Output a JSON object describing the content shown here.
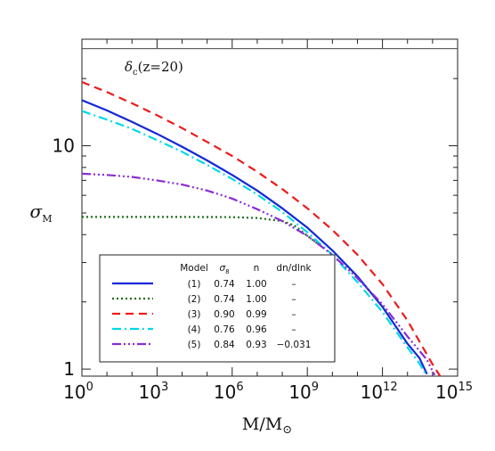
{
  "chart_data": {
    "type": "line",
    "title": "",
    "xlabel": "M/M⊙",
    "ylabel": "σM",
    "x_scale": "log",
    "y_scale": "log",
    "xlim": [
      1,
      1000000000000000.0
    ],
    "ylim": [
      0.93,
      30
    ],
    "x_ticks": [
      {
        "value": 1,
        "base": "10",
        "exp": "0"
      },
      {
        "value": 1000,
        "base": "10",
        "exp": "3"
      },
      {
        "value": 1000000,
        "base": "10",
        "exp": "6"
      },
      {
        "value": 1000000000,
        "base": "10",
        "exp": "9"
      },
      {
        "value": 1000000000000,
        "base": "10",
        "exp": "12"
      },
      {
        "value": 1000000000000000,
        "base": "10",
        "exp": "15"
      }
    ],
    "y_ticks": [
      {
        "value": 1,
        "label": "1"
      },
      {
        "value": 10,
        "label": "10"
      }
    ],
    "grid": false,
    "reference_line": {
      "y": 27.2,
      "label_main": "δ",
      "label_sub": "c",
      "label_rest": "(z=20)"
    },
    "legend": {
      "placement": "bottom-left",
      "headers": [
        "Model",
        "σ8",
        "n",
        "dn/dlnk"
      ],
      "rows": [
        {
          "model": "(1)",
          "sigma8": "0.74",
          "n": "1.00",
          "running": "–",
          "color": "#1428d8",
          "dash": "solid"
        },
        {
          "model": "(2)",
          "sigma8": "0.74",
          "n": "1.00",
          "running": "–",
          "color": "#1a6e1a",
          "dash": "dotted"
        },
        {
          "model": "(3)",
          "sigma8": "0.90",
          "n": "0.99",
          "running": "–",
          "color": "#ee1a1a",
          "dash": "dashed"
        },
        {
          "model": "(4)",
          "sigma8": "0.76",
          "n": "0.96",
          "running": "–",
          "color": "#00d8e6",
          "dash": "dashdot"
        },
        {
          "model": "(5)",
          "sigma8": "0.84",
          "n": "0.93",
          "running": "−0.031",
          "color": "#8a2bd4",
          "dash": "dashdotdotdot"
        }
      ]
    },
    "series": [
      {
        "color": "#1428d8",
        "dash": "solid",
        "x": [
          1,
          10,
          100,
          1000,
          10000,
          100000,
          1000000,
          10000000,
          100000000,
          1000000000,
          10000000000,
          100000000000,
          1000000000000,
          10000000000000,
          30000000000000,
          60000000000000
        ],
        "y": [
          16.0,
          14.4,
          12.8,
          11.3,
          9.9,
          8.6,
          7.4,
          6.3,
          5.25,
          4.3,
          3.4,
          2.6,
          1.9,
          1.3,
          1.12,
          0.95
        ]
      },
      {
        "color": "#1a6e1a",
        "dash": "dotted",
        "x": [
          1,
          10000,
          1000000,
          10000000,
          100000000,
          300000000,
          1000000000,
          3000000000
        ],
        "y": [
          4.8,
          4.8,
          4.79,
          4.75,
          4.6,
          4.4,
          3.95,
          3.6
        ]
      },
      {
        "color": "#ee1a1a",
        "dash": "dashed",
        "x": [
          1,
          10,
          100,
          1000,
          10000,
          100000,
          1000000,
          10000000,
          100000000,
          1000000000,
          10000000000,
          100000000000,
          1000000000000,
          10000000000000,
          100000000000000,
          200000000000000
        ],
        "y": [
          19.3,
          17.4,
          15.5,
          13.7,
          12.0,
          10.4,
          9.0,
          7.65,
          6.4,
          5.25,
          4.2,
          3.25,
          2.4,
          1.65,
          1.05,
          0.93
        ]
      },
      {
        "color": "#00d8e6",
        "dash": "dashdot",
        "x": [
          1,
          10,
          100,
          1000,
          10000,
          100000,
          1000000,
          10000000,
          100000000,
          1000000000,
          10000000000,
          100000000000,
          1000000000000,
          10000000000000,
          30000000000000,
          50000000000000
        ],
        "y": [
          14.3,
          13.1,
          11.9,
          10.6,
          9.4,
          8.2,
          7.1,
          6.05,
          5.05,
          4.1,
          3.25,
          2.45,
          1.8,
          1.25,
          1.06,
          0.96
        ]
      },
      {
        "color": "#8a2bd4",
        "dash": "dashdotdotdot",
        "x": [
          1,
          10,
          100,
          1000,
          10000,
          100000,
          1000000,
          10000000,
          100000000,
          1000000000,
          10000000000,
          100000000000,
          1000000000000,
          10000000000000,
          60000000000000,
          120000000000000
        ],
        "y": [
          7.5,
          7.4,
          7.25,
          7.0,
          6.7,
          6.3,
          5.8,
          5.2,
          4.6,
          3.95,
          3.25,
          2.55,
          1.95,
          1.4,
          1.1,
          0.94
        ]
      }
    ]
  }
}
